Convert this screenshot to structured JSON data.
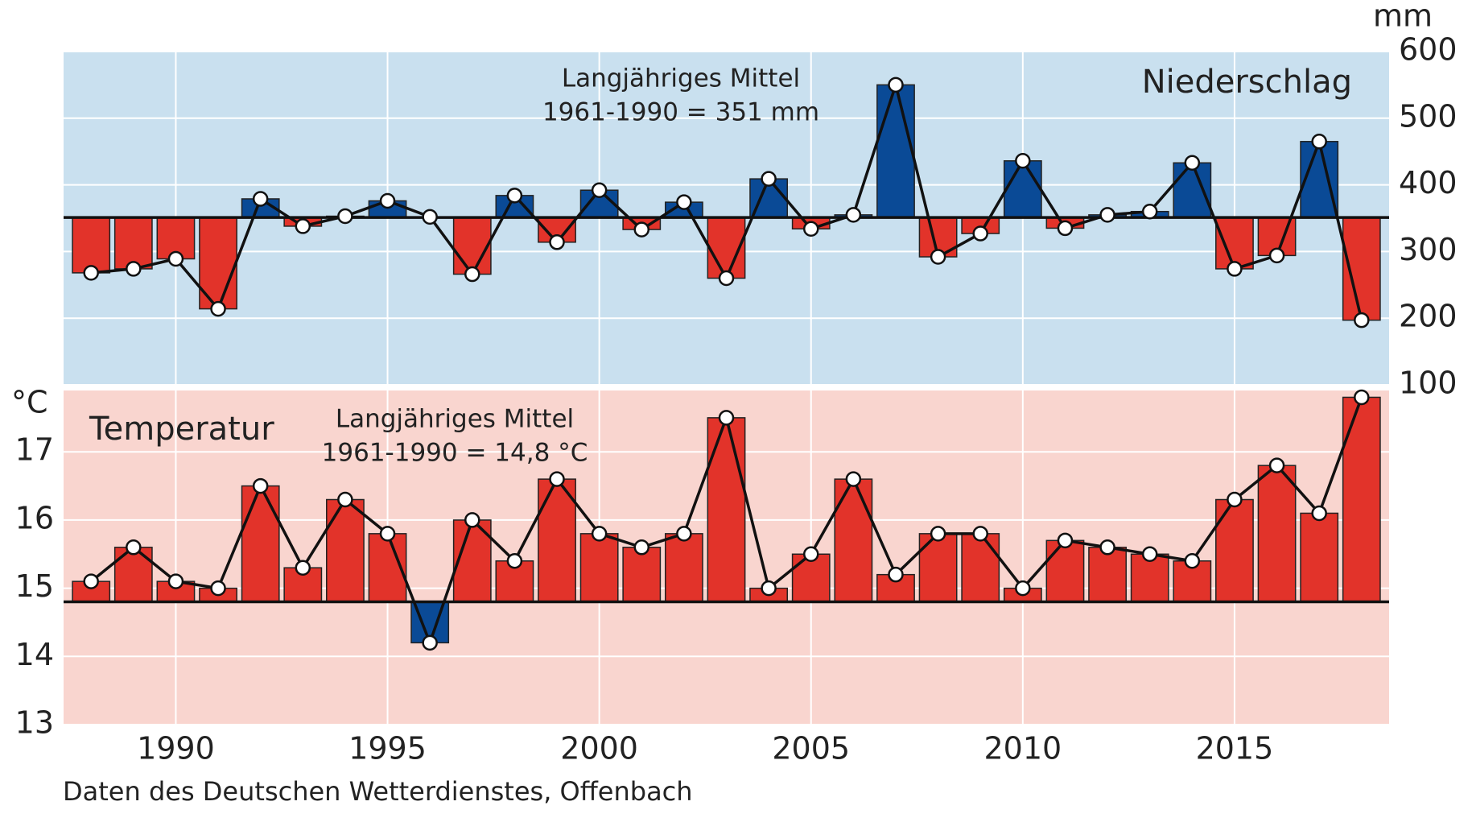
{
  "source": "Daten des Deutschen Wetterdienstes, Offenbach",
  "chart_data": [
    {
      "type": "bar_line",
      "title": "Niederschlag",
      "unit": "mm",
      "annotation": [
        "Langjähriges Mittel",
        "1961-1990 = 351 mm"
      ],
      "reference": 351,
      "above_color": "#0a4a96",
      "below_color": "#e2332a",
      "background": "#c9e0ef",
      "x": [
        1988,
        1989,
        1990,
        1991,
        1992,
        1993,
        1994,
        1995,
        1996,
        1997,
        1998,
        1999,
        2000,
        2001,
        2002,
        2003,
        2004,
        2005,
        2006,
        2007,
        2008,
        2009,
        2010,
        2011,
        2012,
        2013,
        2014,
        2015,
        2016,
        2017,
        2018
      ],
      "values": [
        268,
        274,
        289,
        214,
        379,
        338,
        353,
        376,
        352,
        266,
        384,
        314,
        392,
        333,
        374,
        260,
        409,
        334,
        355,
        550,
        292,
        327,
        436,
        335,
        355,
        360,
        433,
        274,
        294,
        465,
        197
      ],
      "xlim": [
        1987.35,
        2018.65
      ],
      "ylim": [
        100,
        600
      ],
      "yticks": [
        100,
        200,
        300,
        400,
        500,
        600
      ],
      "grid": true,
      "y_axis_side": "right"
    },
    {
      "type": "bar_line",
      "title": "Temperatur",
      "unit": "°C",
      "annotation": [
        "Langjähriges Mittel",
        "1961-1990 = 14,8 °C"
      ],
      "reference": 14.8,
      "above_color": "#e2332a",
      "below_color": "#0a4a96",
      "background": "#f9d5cf",
      "x": [
        1988,
        1989,
        1990,
        1991,
        1992,
        1993,
        1994,
        1995,
        1996,
        1997,
        1998,
        1999,
        2000,
        2001,
        2002,
        2003,
        2004,
        2005,
        2006,
        2007,
        2008,
        2009,
        2010,
        2011,
        2012,
        2013,
        2014,
        2015,
        2016,
        2017,
        2018
      ],
      "values": [
        15.1,
        15.6,
        15.1,
        15.0,
        16.5,
        15.3,
        16.3,
        15.8,
        14.2,
        16.0,
        15.4,
        16.6,
        15.8,
        15.6,
        15.8,
        17.5,
        15.0,
        15.5,
        16.6,
        15.2,
        15.8,
        15.8,
        15.0,
        15.7,
        15.6,
        15.5,
        15.4,
        16.3,
        16.8,
        16.1,
        17.8
      ],
      "xlim": [
        1987.35,
        2018.65
      ],
      "ylim": [
        13,
        17.9
      ],
      "yticks": [
        13,
        14,
        15,
        16,
        17
      ],
      "xticks": [
        1990,
        1995,
        2000,
        2005,
        2010,
        2015
      ],
      "grid": true,
      "y_axis_side": "left"
    }
  ]
}
